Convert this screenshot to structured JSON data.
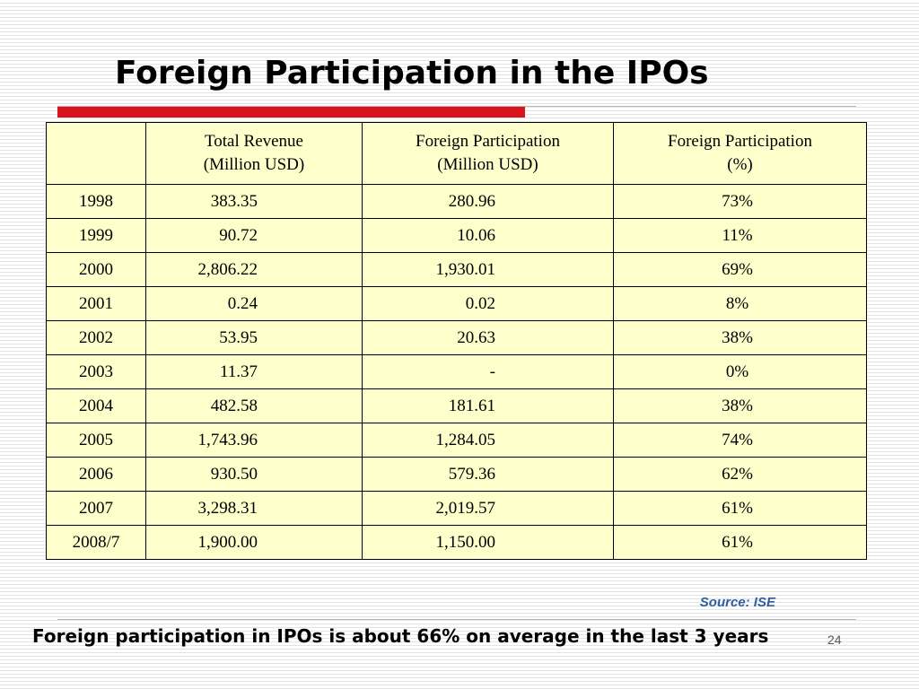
{
  "slide": {
    "title": "Foreign Participation in the IPOs",
    "accent_color": "#d9141c",
    "table_background": "#ffffcc",
    "source": "Source: ISE",
    "footer_note": "Foreign participation in IPOs is about 66% on average in the last 3 years",
    "slide_number": "24"
  },
  "table": {
    "headers": [
      {
        "line1": "",
        "line2": ""
      },
      {
        "line1": "Total Revenue",
        "line2": "(Million USD)"
      },
      {
        "line1": "Foreign Participation",
        "line2": "(Million USD)"
      },
      {
        "line1": "Foreign Participation",
        "line2": "(%)"
      }
    ],
    "rows": [
      {
        "year": "1998",
        "revenue": "383.35",
        "foreign": "280.96",
        "pct": "73%"
      },
      {
        "year": "1999",
        "revenue": "90.72",
        "foreign": "10.06",
        "pct": "11%"
      },
      {
        "year": "2000",
        "revenue": "2,806.22",
        "foreign": "1,930.01",
        "pct": "69%"
      },
      {
        "year": "2001",
        "revenue": "0.24",
        "foreign": "0.02",
        "pct": "8%"
      },
      {
        "year": "2002",
        "revenue": "53.95",
        "foreign": "20.63",
        "pct": "38%"
      },
      {
        "year": "2003",
        "revenue": "11.37",
        "foreign": "-",
        "pct": "0%"
      },
      {
        "year": "2004",
        "revenue": "482.58",
        "foreign": "181.61",
        "pct": "38%"
      },
      {
        "year": "2005",
        "revenue": "1,743.96",
        "foreign": "1,284.05",
        "pct": "74%"
      },
      {
        "year": "2006",
        "revenue": "930.50",
        "foreign": "579.36",
        "pct": "62%"
      },
      {
        "year": "2007",
        "revenue": "3,298.31",
        "foreign": "2,019.57",
        "pct": "61%"
      },
      {
        "year": "2008/7",
        "revenue": "1,900.00",
        "foreign": "1,150.00",
        "pct": "61%"
      }
    ]
  }
}
